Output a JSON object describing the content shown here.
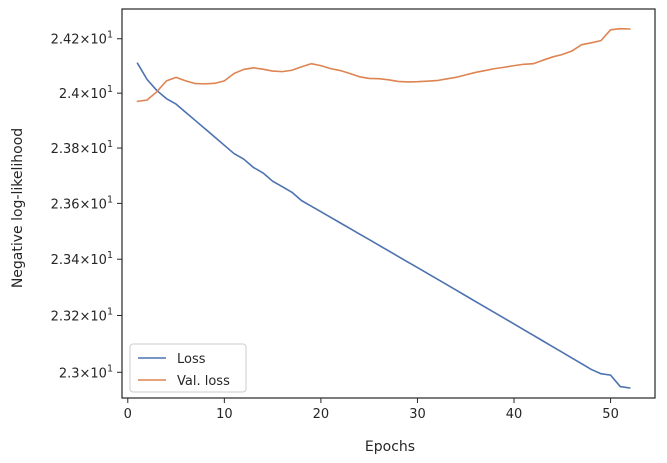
{
  "chart_data": {
    "type": "line",
    "title": "",
    "xlabel": "Epochs",
    "ylabel": "Negative log-likelihood",
    "xlim": [
      -0.6,
      54.6
    ],
    "ylim": [
      22.91,
      24.31
    ],
    "y_scale": "log",
    "grid": false,
    "legend_position": "lower-left",
    "x_ticks": [
      {
        "value": 0,
        "label": "0"
      },
      {
        "value": 10,
        "label": "10"
      },
      {
        "value": 20,
        "label": "20"
      },
      {
        "value": 30,
        "label": "30"
      },
      {
        "value": 40,
        "label": "40"
      },
      {
        "value": 50,
        "label": "50"
      }
    ],
    "y_ticks": [
      {
        "value": 23.0,
        "base": "2.3",
        "exp": "1"
      },
      {
        "value": 23.2,
        "base": "2.32",
        "exp": "1"
      },
      {
        "value": 23.4,
        "base": "2.34",
        "exp": "1"
      },
      {
        "value": 23.6,
        "base": "2.36",
        "exp": "1"
      },
      {
        "value": 23.8,
        "base": "2.38",
        "exp": "1"
      },
      {
        "value": 24.0,
        "base": "2.4",
        "exp": "1"
      },
      {
        "value": 24.2,
        "base": "2.42",
        "exp": "1"
      }
    ],
    "x": [
      1,
      2,
      3,
      4,
      5,
      6,
      7,
      8,
      9,
      10,
      11,
      12,
      13,
      14,
      15,
      16,
      17,
      18,
      19,
      20,
      21,
      22,
      23,
      24,
      25,
      26,
      27,
      28,
      29,
      30,
      31,
      32,
      33,
      34,
      35,
      36,
      37,
      38,
      39,
      40,
      41,
      42,
      43,
      44,
      45,
      46,
      47,
      48,
      49,
      50,
      51,
      52
    ],
    "series": [
      {
        "name": "Loss",
        "color": "#4c72b0",
        "values": [
          24.11,
          24.05,
          24.01,
          23.98,
          23.96,
          23.93,
          23.9,
          23.87,
          23.84,
          23.81,
          23.78,
          23.76,
          23.73,
          23.71,
          23.68,
          23.66,
          23.64,
          23.61,
          23.59,
          23.57,
          23.55,
          23.53,
          23.51,
          23.49,
          23.47,
          23.45,
          23.43,
          23.41,
          23.39,
          23.37,
          23.35,
          23.33,
          23.31,
          23.29,
          23.27,
          23.25,
          23.23,
          23.21,
          23.19,
          23.17,
          23.15,
          23.13,
          23.11,
          23.09,
          23.07,
          23.05,
          23.03,
          23.01,
          22.995,
          22.99,
          22.95,
          22.945
        ]
      },
      {
        "name": "Val. loss",
        "color": "#dd8452",
        "values": [
          23.97,
          23.975,
          24.005,
          24.045,
          24.058,
          24.045,
          24.035,
          24.034,
          24.036,
          24.045,
          24.072,
          24.087,
          24.093,
          24.088,
          24.081,
          24.079,
          24.084,
          24.097,
          24.108,
          24.101,
          24.09,
          24.083,
          24.072,
          24.06,
          24.054,
          24.053,
          24.049,
          24.043,
          24.041,
          24.042,
          24.044,
          24.046,
          24.052,
          24.058,
          24.067,
          24.076,
          24.083,
          24.09,
          24.095,
          24.101,
          24.106,
          24.108,
          24.121,
          24.133,
          24.142,
          24.155,
          24.178,
          24.185,
          24.193,
          24.233,
          24.237,
          24.236
        ]
      }
    ]
  }
}
